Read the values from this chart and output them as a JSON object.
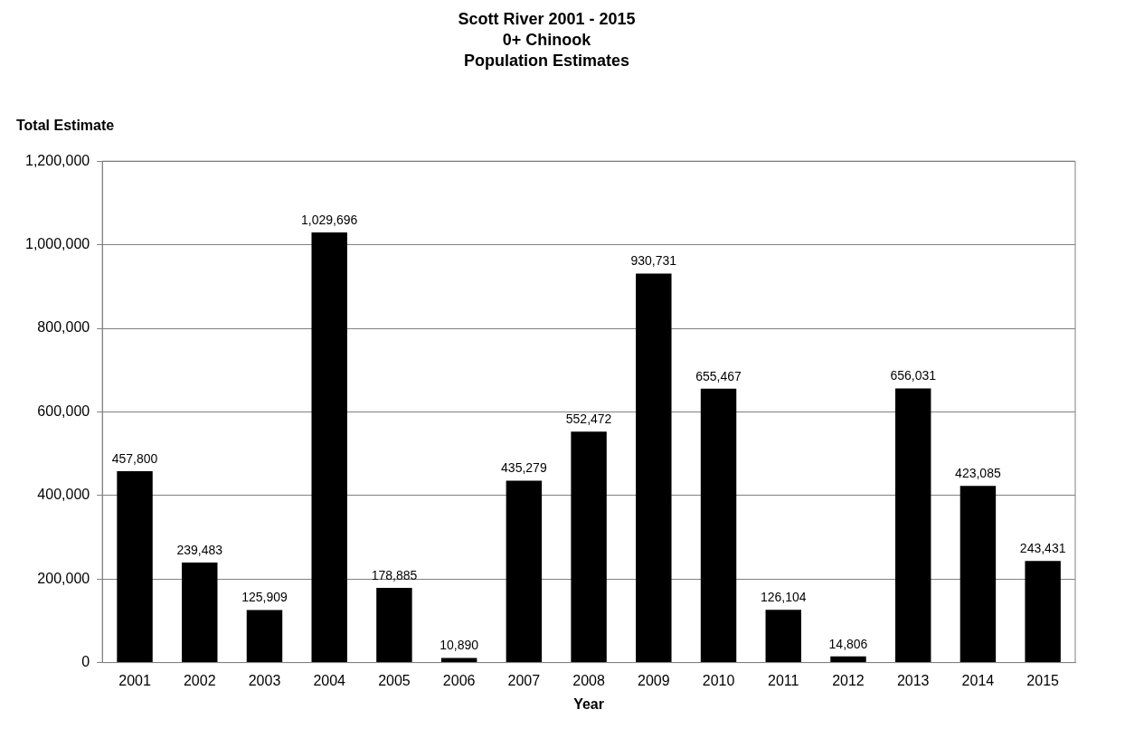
{
  "chart_data": {
    "type": "bar",
    "title": "Scott River 2001 - 2015\n0+ Chinook\nPopulation Estimates",
    "xlabel": "Year",
    "ylabel": "Total Estimate",
    "categories": [
      "2001",
      "2002",
      "2003",
      "2004",
      "2005",
      "2006",
      "2007",
      "2008",
      "2009",
      "2010",
      "2011",
      "2012",
      "2013",
      "2014",
      "2015"
    ],
    "values": [
      457800,
      239483,
      125909,
      1029696,
      178885,
      10890,
      435279,
      552472,
      930731,
      655467,
      126104,
      14806,
      656031,
      423085,
      243431
    ],
    "value_labels": [
      "457,800",
      "239,483",
      "125,909",
      "1,029,696",
      "178,885",
      "10,890",
      "435,279",
      "552,472",
      "930,731",
      "655,467",
      "126,104",
      "14,806",
      "656,031",
      "423,085",
      "243,431"
    ],
    "color": "#000000",
    "ylim": [
      0,
      1200000
    ],
    "yticks": [
      0,
      {
        "value": 200000,
        "label": "200,000"
      },
      {
        "value": 400000,
        "label": "400,000"
      },
      {
        "value": 600000,
        "label": "600,000"
      },
      {
        "value": 800000,
        "label": "800,000"
      },
      {
        "value": 1000000,
        "label": "1,000,000"
      },
      {
        "value": 1200000,
        "label": "1,200,000"
      }
    ],
    "grid": "y",
    "legend": false
  }
}
